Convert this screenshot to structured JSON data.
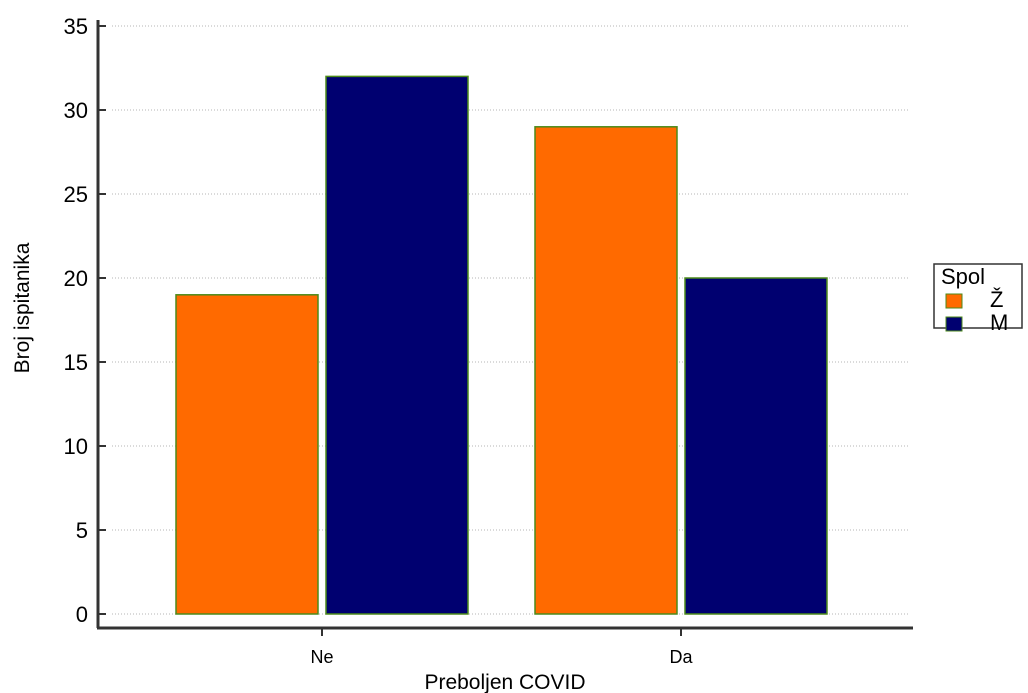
{
  "chart_data": {
    "type": "bar",
    "title": "",
    "xlabel": "Preboljen COVID",
    "ylabel": "Broj ispitanika",
    "categories": [
      "Ne",
      "Da"
    ],
    "series": [
      {
        "name": "Ž",
        "values": [
          19,
          29
        ],
        "color": "#ff6a00"
      },
      {
        "name": "M",
        "values": [
          32,
          20
        ],
        "color": "#000070"
      }
    ],
    "ylim": [
      0,
      35
    ],
    "yticks": [
      0,
      5,
      10,
      15,
      20,
      25,
      30,
      35
    ],
    "grid": true,
    "legend": {
      "title": "Spol",
      "placement": "right"
    },
    "bar_border_color": "#4c8a1a",
    "axis_color": "#333333"
  }
}
